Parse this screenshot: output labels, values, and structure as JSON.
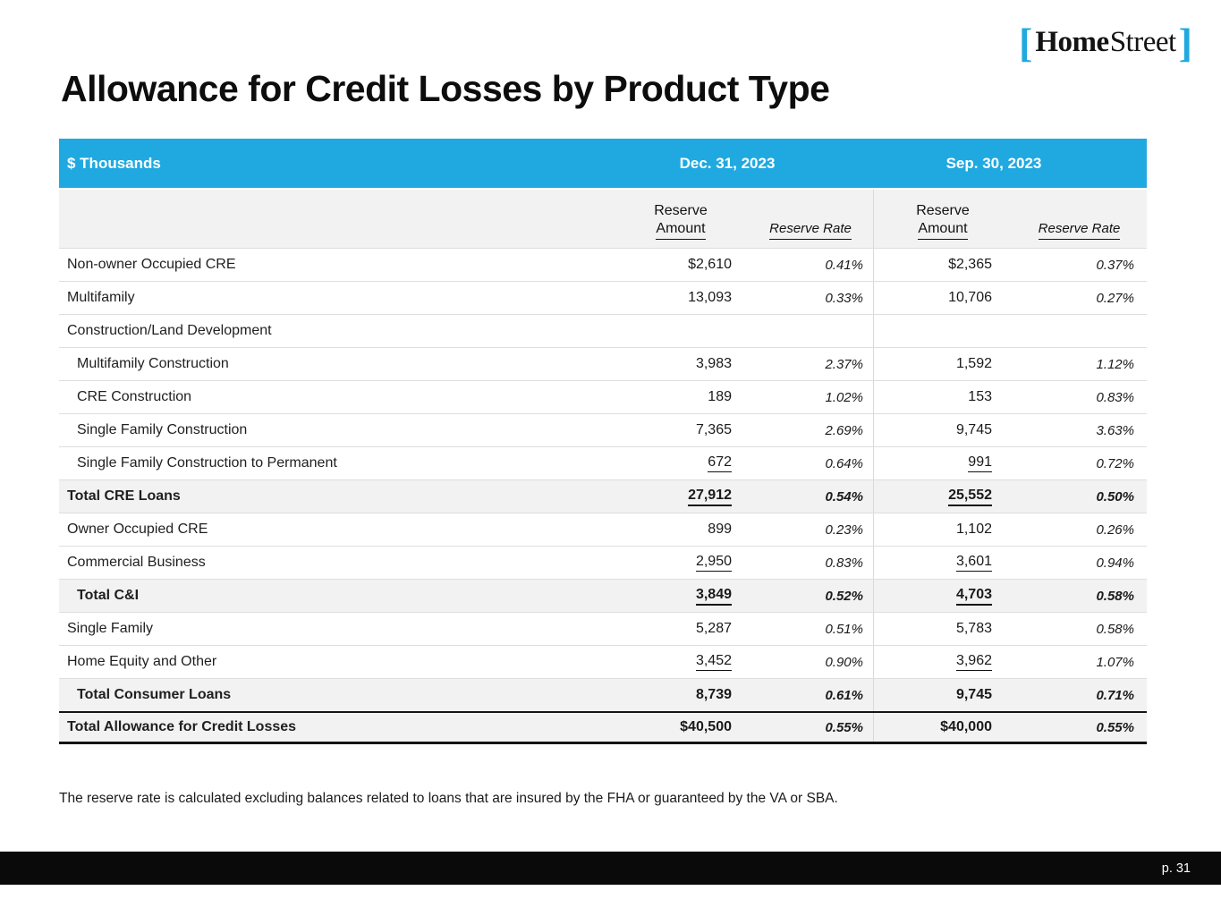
{
  "page": {
    "title": "Allowance for Credit Losses by Product Type",
    "footnote": "The reserve rate is calculated excluding balances related to loans that are insured by the FHA or guaranteed by the VA or SBA.",
    "page_number": "p. 31"
  },
  "logo": {
    "bracket_left": "[",
    "home": "Home",
    "street": "Street",
    "bracket_right": "]"
  },
  "colors": {
    "accent_blue": "#20a9e0",
    "shaded_row": "#f2f2f2",
    "footer_bar": "#0a0a0a"
  },
  "table": {
    "corner_label": "$ Thousands",
    "period_headers": [
      "Dec. 31, 2023",
      "Sep. 30, 2023"
    ],
    "sub_headers": {
      "amount_line1": "Reserve",
      "amount_line2": "Amount",
      "rate": "Reserve Rate"
    },
    "rows": [
      {
        "label": "Non-owner Occupied CRE",
        "indent": false,
        "bold": false,
        "shaded": false,
        "underline": false,
        "grand": false,
        "values": [
          "$2,610",
          "0.41%",
          "$2,365",
          "0.37%"
        ]
      },
      {
        "label": "Multifamily",
        "indent": false,
        "bold": false,
        "shaded": false,
        "underline": false,
        "grand": false,
        "values": [
          "13,093",
          "0.33%",
          "10,706",
          "0.27%"
        ]
      },
      {
        "label": "Construction/Land Development",
        "indent": false,
        "bold": false,
        "shaded": false,
        "underline": false,
        "grand": false,
        "values": [
          "",
          "",
          "",
          ""
        ]
      },
      {
        "label": "Multifamily Construction",
        "indent": true,
        "bold": false,
        "shaded": false,
        "underline": false,
        "grand": false,
        "values": [
          "3,983",
          "2.37%",
          "1,592",
          "1.12%"
        ]
      },
      {
        "label": "CRE Construction",
        "indent": true,
        "bold": false,
        "shaded": false,
        "underline": false,
        "grand": false,
        "values": [
          "189",
          "1.02%",
          "153",
          "0.83%"
        ]
      },
      {
        "label": "Single Family Construction",
        "indent": true,
        "bold": false,
        "shaded": false,
        "underline": false,
        "grand": false,
        "values": [
          "7,365",
          "2.69%",
          "9,745",
          "3.63%"
        ]
      },
      {
        "label": "Single Family Construction to Permanent",
        "indent": true,
        "bold": false,
        "shaded": false,
        "underline": true,
        "grand": false,
        "values": [
          "672",
          "0.64%",
          "991",
          "0.72%"
        ]
      },
      {
        "label": "Total CRE Loans",
        "indent": false,
        "bold": true,
        "shaded": true,
        "underline": true,
        "grand": false,
        "values": [
          "27,912",
          "0.54%",
          "25,552",
          "0.50%"
        ]
      },
      {
        "label": "Owner Occupied CRE",
        "indent": false,
        "bold": false,
        "shaded": false,
        "underline": false,
        "grand": false,
        "values": [
          "899",
          "0.23%",
          "1,102",
          "0.26%"
        ]
      },
      {
        "label": "Commercial Business",
        "indent": false,
        "bold": false,
        "shaded": false,
        "underline": true,
        "grand": false,
        "values": [
          "2,950",
          "0.83%",
          "3,601",
          "0.94%"
        ]
      },
      {
        "label": "Total C&I",
        "indent": true,
        "bold": true,
        "shaded": true,
        "underline": true,
        "grand": false,
        "values": [
          "3,849",
          "0.52%",
          "4,703",
          "0.58%"
        ]
      },
      {
        "label": "Single Family",
        "indent": false,
        "bold": false,
        "shaded": false,
        "underline": false,
        "grand": false,
        "values": [
          "5,287",
          "0.51%",
          "5,783",
          "0.58%"
        ]
      },
      {
        "label": "Home Equity and Other",
        "indent": false,
        "bold": false,
        "shaded": false,
        "underline": true,
        "grand": false,
        "values": [
          "3,452",
          "0.90%",
          "3,962",
          "1.07%"
        ]
      },
      {
        "label": "Total Consumer Loans",
        "indent": true,
        "bold": true,
        "shaded": true,
        "underline": false,
        "grand": false,
        "values": [
          "8,739",
          "0.61%",
          "9,745",
          "0.71%"
        ]
      },
      {
        "label": "Total Allowance for Credit Losses",
        "indent": false,
        "bold": true,
        "shaded": true,
        "underline": false,
        "grand": true,
        "values": [
          "$40,500",
          "0.55%",
          "$40,000",
          "0.55%"
        ]
      }
    ]
  }
}
